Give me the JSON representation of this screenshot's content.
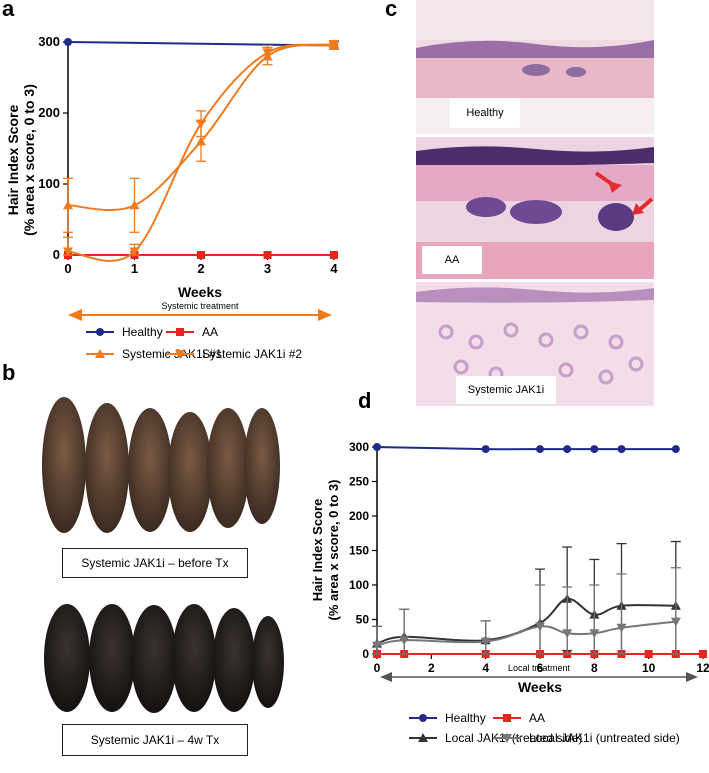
{
  "panels": {
    "a": "a",
    "b": "b",
    "c": "c",
    "d": "d"
  },
  "chart_data": [
    {
      "type": "line",
      "panel": "a",
      "xlabel": "Weeks",
      "ylabel": "Hair Index Score",
      "ylabel2": "(% area x score, 0 to 3)",
      "xlim": [
        0,
        4
      ],
      "ylim": [
        0,
        300
      ],
      "xticks": [
        0,
        1,
        2,
        3,
        4
      ],
      "yticks": [
        0,
        100,
        200,
        300
      ],
      "treatment_label": "Systemic treatment",
      "series": [
        {
          "name": "Healthy",
          "color": "#1f2a8a",
          "marker": "circle",
          "x": [
            0,
            4
          ],
          "y": [
            300,
            295
          ],
          "err": [
            0,
            5
          ]
        },
        {
          "name": "AA",
          "color": "#e8241c",
          "marker": "square",
          "x": [
            0,
            1,
            2,
            3,
            4
          ],
          "y": [
            0,
            0,
            0,
            0,
            0
          ],
          "err": [
            0,
            0,
            0,
            0,
            0
          ]
        },
        {
          "name": "Systemic JAK1i #1",
          "color": "#f07a1e",
          "marker": "triangle-up",
          "x": [
            0,
            1,
            2,
            3,
            4
          ],
          "y": [
            70,
            70,
            160,
            280,
            297
          ],
          "err": [
            38,
            38,
            28,
            12,
            5
          ]
        },
        {
          "name": "Systemic JAK1i #2",
          "color": "#f07a1e",
          "marker": "triangle-down",
          "x": [
            0,
            1,
            2,
            3,
            4
          ],
          "y": [
            5,
            5,
            185,
            285,
            295
          ],
          "err": [
            20,
            10,
            18,
            10,
            5
          ]
        }
      ]
    },
    {
      "type": "line",
      "panel": "d",
      "xlabel": "Weeks",
      "ylabel": "Hair Index Score",
      "ylabel2": "(% area x score, 0 to 3)",
      "xlim": [
        0,
        12
      ],
      "ylim": [
        0,
        300
      ],
      "xticks": [
        0,
        2,
        4,
        6,
        8,
        10,
        12
      ],
      "yticks": [
        0,
        50,
        100,
        150,
        200,
        250,
        300
      ],
      "treatment_label": "Local treatment",
      "series": [
        {
          "name": "Healthy",
          "color": "#1f2a8a",
          "marker": "circle",
          "x": [
            0,
            4,
            6,
            7,
            8,
            9,
            11
          ],
          "y": [
            300,
            297,
            297,
            297,
            297,
            297,
            297
          ],
          "err": [
            0,
            0,
            0,
            0,
            0,
            0,
            0
          ]
        },
        {
          "name": "AA",
          "color": "#e8241c",
          "marker": "square",
          "x": [
            0,
            1,
            4,
            6,
            7,
            8,
            9,
            10,
            11,
            12
          ],
          "y": [
            0,
            0,
            0,
            0,
            0,
            0,
            0,
            0,
            0,
            0
          ],
          "err": [
            0,
            0,
            0,
            0,
            0,
            0,
            0,
            0,
            0,
            0
          ]
        },
        {
          "name": "Local JAK1i (treated side)",
          "color": "#333333",
          "marker": "triangle-up",
          "x": [
            0,
            1,
            4,
            6,
            7,
            8,
            9,
            11
          ],
          "y": [
            15,
            25,
            20,
            45,
            80,
            57,
            70,
            70
          ],
          "err": [
            25,
            40,
            28,
            78,
            75,
            80,
            90,
            93
          ]
        },
        {
          "name": "Local JAK1i (untreated side)",
          "color": "#777777",
          "marker": "triangle-down",
          "x": [
            0,
            1,
            4,
            6,
            7,
            8,
            9,
            11
          ],
          "y": [
            12,
            20,
            18,
            40,
            30,
            30,
            38,
            47
          ],
          "err": [
            28,
            45,
            30,
            60,
            67,
            70,
            78,
            78
          ]
        }
      ]
    }
  ],
  "photos": {
    "before_caption": "Systemic JAK1i – before Tx",
    "after_caption": "Systemic JAK1i – 4w Tx"
  },
  "histology": {
    "healthy": "Healthy",
    "aa": "AA",
    "jak": "Systemic JAK1i"
  }
}
